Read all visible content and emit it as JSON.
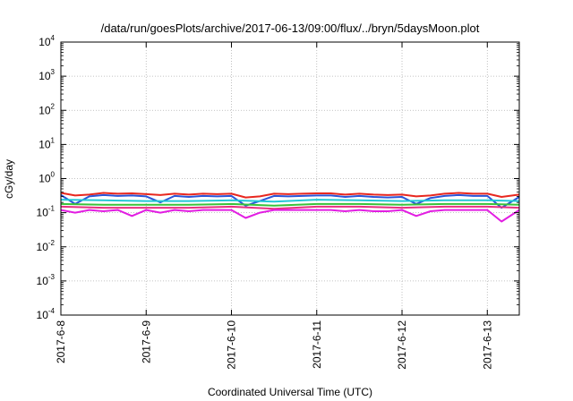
{
  "chart_data": {
    "type": "line",
    "title": "/data/run/goesPlots/archive/2017-06-13/09:00/flux/../bryn/5daysMoon.plot",
    "xlabel": "Coordinated Universal Time (UTC)",
    "ylabel": "cGy/day",
    "yscale": "log",
    "ylim": [
      0.0001,
      10000
    ],
    "xlim": [
      "2017-06-08T00:00",
      "2017-06-13T09:00"
    ],
    "grid": true,
    "x_ticks": [
      "2017-6-8",
      "2017-6-9",
      "2017-6-10",
      "2017-6-11",
      "2017-6-12",
      "2017-6-13"
    ],
    "y_ticks": [
      {
        "base": "10",
        "exp": "-4"
      },
      {
        "base": "10",
        "exp": "-3"
      },
      {
        "base": "10",
        "exp": "-2"
      },
      {
        "base": "10",
        "exp": "-1"
      },
      {
        "base": "10",
        "exp": "0"
      },
      {
        "base": "10",
        "exp": "1"
      },
      {
        "base": "10",
        "exp": "2"
      },
      {
        "base": "10",
        "exp": "3"
      },
      {
        "base": "10",
        "exp": "4"
      }
    ],
    "series": [
      {
        "color": "#e8271f",
        "x": [
          "2017-06-08T00:00",
          "2017-06-08T04:00",
          "2017-06-08T08:00",
          "2017-06-08T12:00",
          "2017-06-08T16:00",
          "2017-06-08T20:00",
          "2017-06-09T00:00",
          "2017-06-09T04:00",
          "2017-06-09T08:00",
          "2017-06-09T12:00",
          "2017-06-09T16:00",
          "2017-06-09T20:00",
          "2017-06-10T00:00",
          "2017-06-10T04:00",
          "2017-06-10T08:00",
          "2017-06-10T12:00",
          "2017-06-10T16:00",
          "2017-06-10T20:00",
          "2017-06-11T00:00",
          "2017-06-11T04:00",
          "2017-06-11T08:00",
          "2017-06-11T12:00",
          "2017-06-11T16:00",
          "2017-06-11T20:00",
          "2017-06-12T00:00",
          "2017-06-12T04:00",
          "2017-06-12T08:00",
          "2017-06-12T12:00",
          "2017-06-12T16:00",
          "2017-06-12T20:00",
          "2017-06-13T00:00",
          "2017-06-13T04:00",
          "2017-06-13T09:00"
        ],
        "values": [
          0.38,
          0.32,
          0.34,
          0.38,
          0.36,
          0.37,
          0.35,
          0.33,
          0.36,
          0.34,
          0.36,
          0.35,
          0.36,
          0.28,
          0.3,
          0.36,
          0.35,
          0.36,
          0.37,
          0.37,
          0.34,
          0.36,
          0.34,
          0.33,
          0.34,
          0.3,
          0.32,
          0.36,
          0.38,
          0.36,
          0.36,
          0.29,
          0.34
        ]
      },
      {
        "color": "#2a55d8",
        "x": [
          "2017-06-08T00:00",
          "2017-06-08T04:00",
          "2017-06-08T08:00",
          "2017-06-08T12:00",
          "2017-06-08T16:00",
          "2017-06-08T20:00",
          "2017-06-09T00:00",
          "2017-06-09T04:00",
          "2017-06-09T08:00",
          "2017-06-09T12:00",
          "2017-06-09T16:00",
          "2017-06-09T20:00",
          "2017-06-10T00:00",
          "2017-06-10T04:00",
          "2017-06-10T08:00",
          "2017-06-10T12:00",
          "2017-06-10T16:00",
          "2017-06-10T20:00",
          "2017-06-11T00:00",
          "2017-06-11T04:00",
          "2017-06-11T08:00",
          "2017-06-11T12:00",
          "2017-06-11T16:00",
          "2017-06-11T20:00",
          "2017-06-12T00:00",
          "2017-06-12T04:00",
          "2017-06-12T08:00",
          "2017-06-12T12:00",
          "2017-06-12T16:00",
          "2017-06-12T20:00",
          "2017-06-13T00:00",
          "2017-06-13T04:00",
          "2017-06-13T09:00"
        ],
        "values": [
          0.33,
          0.18,
          0.3,
          0.33,
          0.31,
          0.32,
          0.3,
          0.2,
          0.31,
          0.29,
          0.31,
          0.3,
          0.31,
          0.16,
          0.22,
          0.31,
          0.3,
          0.31,
          0.32,
          0.32,
          0.29,
          0.31,
          0.29,
          0.28,
          0.29,
          0.18,
          0.27,
          0.31,
          0.33,
          0.31,
          0.31,
          0.14,
          0.29
        ]
      },
      {
        "color": "#22c7d6",
        "x": [
          "2017-06-08T00:00",
          "2017-06-08T12:00",
          "2017-06-09T00:00",
          "2017-06-09T12:00",
          "2017-06-10T00:00",
          "2017-06-10T12:00",
          "2017-06-11T00:00",
          "2017-06-11T12:00",
          "2017-06-12T00:00",
          "2017-06-12T12:00",
          "2017-06-13T00:00",
          "2017-06-13T09:00"
        ],
        "values": [
          0.24,
          0.23,
          0.22,
          0.22,
          0.23,
          0.21,
          0.24,
          0.23,
          0.22,
          0.23,
          0.23,
          0.22
        ]
      },
      {
        "color": "#39c239",
        "x": [
          "2017-06-08T00:00",
          "2017-06-08T12:00",
          "2017-06-09T00:00",
          "2017-06-09T12:00",
          "2017-06-10T00:00",
          "2017-06-10T12:00",
          "2017-06-11T00:00",
          "2017-06-11T12:00",
          "2017-06-12T00:00",
          "2017-06-12T12:00",
          "2017-06-13T00:00",
          "2017-06-13T09:00"
        ],
        "values": [
          0.18,
          0.17,
          0.17,
          0.17,
          0.18,
          0.16,
          0.18,
          0.18,
          0.17,
          0.18,
          0.18,
          0.17
        ]
      },
      {
        "color": "#e83080",
        "x": [
          "2017-06-08T00:00",
          "2017-06-08T12:00",
          "2017-06-09T00:00",
          "2017-06-09T12:00",
          "2017-06-10T00:00",
          "2017-06-10T12:00",
          "2017-06-11T00:00",
          "2017-06-11T12:00",
          "2017-06-12T00:00",
          "2017-06-12T12:00",
          "2017-06-13T00:00",
          "2017-06-13T09:00"
        ],
        "values": [
          0.15,
          0.14,
          0.14,
          0.14,
          0.15,
          0.13,
          0.15,
          0.15,
          0.14,
          0.15,
          0.15,
          0.14
        ]
      },
      {
        "color": "#e21ee2",
        "x": [
          "2017-06-08T00:00",
          "2017-06-08T04:00",
          "2017-06-08T08:00",
          "2017-06-08T12:00",
          "2017-06-08T16:00",
          "2017-06-08T20:00",
          "2017-06-09T00:00",
          "2017-06-09T04:00",
          "2017-06-09T08:00",
          "2017-06-09T12:00",
          "2017-06-09T16:00",
          "2017-06-09T20:00",
          "2017-06-10T00:00",
          "2017-06-10T04:00",
          "2017-06-10T08:00",
          "2017-06-10T12:00",
          "2017-06-10T16:00",
          "2017-06-10T20:00",
          "2017-06-11T00:00",
          "2017-06-11T04:00",
          "2017-06-11T08:00",
          "2017-06-11T12:00",
          "2017-06-11T16:00",
          "2017-06-11T20:00",
          "2017-06-12T00:00",
          "2017-06-12T04:00",
          "2017-06-12T08:00",
          "2017-06-12T12:00",
          "2017-06-12T16:00",
          "2017-06-12T20:00",
          "2017-06-13T00:00",
          "2017-06-13T04:00",
          "2017-06-13T09:00"
        ],
        "values": [
          0.12,
          0.1,
          0.12,
          0.11,
          0.12,
          0.08,
          0.12,
          0.1,
          0.12,
          0.11,
          0.12,
          0.12,
          0.12,
          0.07,
          0.1,
          0.12,
          0.12,
          0.12,
          0.12,
          0.12,
          0.11,
          0.12,
          0.11,
          0.11,
          0.12,
          0.08,
          0.11,
          0.12,
          0.12,
          0.12,
          0.12,
          0.055,
          0.12
        ]
      }
    ]
  }
}
